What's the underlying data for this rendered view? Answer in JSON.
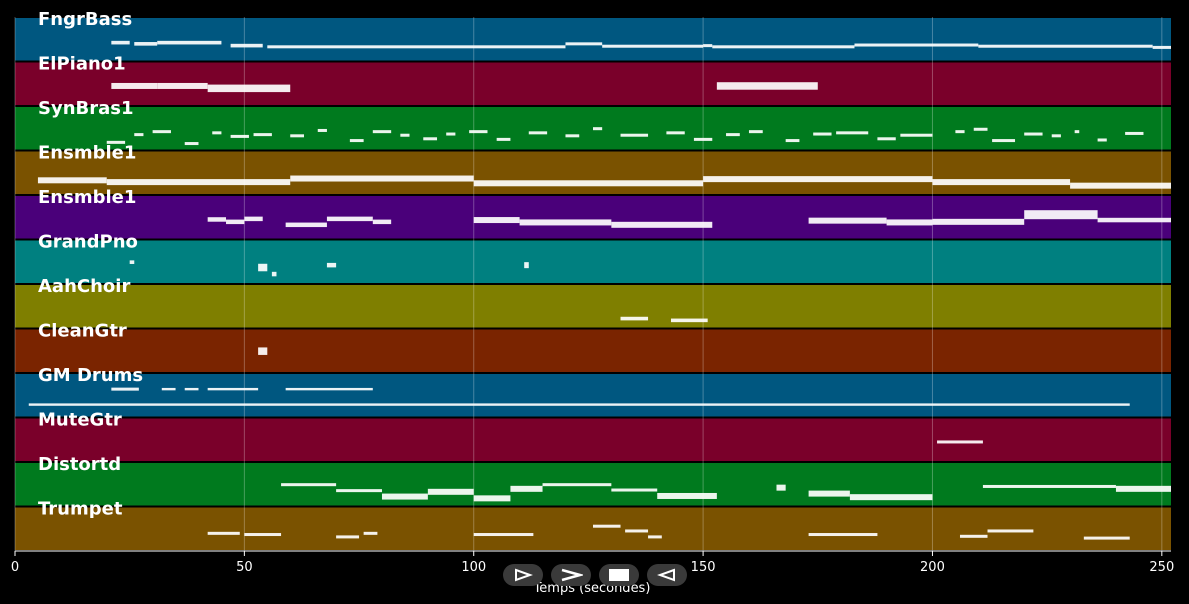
{
  "chart_data": {
    "type": "piano-roll",
    "xlabel": "Temps (secondes)",
    "xlim": [
      0,
      252
    ],
    "xticks": [
      0,
      50,
      100,
      150,
      200,
      250
    ],
    "grid": true,
    "tracks": [
      {
        "name": "FngrBass",
        "color": "#005780",
        "notes": [
          [
            21,
            25,
            1,
            1.2
          ],
          [
            26,
            31,
            0.8,
            1.2
          ],
          [
            31,
            45,
            1,
            1.2
          ],
          [
            47,
            54,
            0.5,
            1.2
          ],
          [
            55,
            120,
            0.3,
            1
          ],
          [
            120,
            128,
            0.8,
            1
          ],
          [
            128,
            150,
            0.4,
            1
          ],
          [
            150,
            152,
            0.5,
            1
          ],
          [
            152,
            183,
            0.3,
            1
          ],
          [
            183,
            210,
            0.6,
            1
          ],
          [
            210,
            248,
            0.4,
            1
          ],
          [
            248,
            252,
            0.2,
            1
          ]
        ]
      },
      {
        "name": "ElPiano1",
        "color": "#7a002a",
        "notes": [
          [
            21,
            31,
            1.2,
            2
          ],
          [
            31,
            42,
            1.2,
            2
          ],
          [
            42,
            60,
            0.8,
            2.5
          ],
          [
            153,
            175,
            1.2,
            2.5
          ]
        ]
      },
      {
        "name": "SynBras1",
        "color": "#007a1e",
        "notes": [
          [
            20,
            24,
            -0.8,
            1
          ],
          [
            26,
            28,
            0.5,
            1
          ],
          [
            30,
            34,
            1,
            1
          ],
          [
            37,
            40,
            -1,
            1
          ],
          [
            43,
            45,
            0.8,
            1
          ],
          [
            47,
            51,
            0.2,
            1
          ],
          [
            52,
            56,
            0.5,
            1
          ],
          [
            60,
            63,
            0.3,
            1
          ],
          [
            66,
            68,
            1.2,
            1
          ],
          [
            73,
            76,
            -0.5,
            1
          ],
          [
            78,
            82,
            1,
            1
          ],
          [
            84,
            86,
            0.4,
            1
          ],
          [
            89,
            92,
            -0.2,
            1
          ],
          [
            94,
            96,
            0.6,
            1
          ],
          [
            99,
            103,
            1,
            1
          ],
          [
            105,
            108,
            -0.3,
            1
          ],
          [
            112,
            116,
            0.8,
            1
          ],
          [
            120,
            123,
            0.3,
            1
          ],
          [
            126,
            128,
            1.5,
            1
          ],
          [
            132,
            138,
            0.4,
            1
          ],
          [
            142,
            146,
            0.8,
            1
          ],
          [
            148,
            152,
            -0.3,
            1
          ],
          [
            155,
            158,
            0.5,
            1
          ],
          [
            160,
            163,
            1,
            1
          ],
          [
            168,
            171,
            -0.5,
            1
          ],
          [
            174,
            178,
            0.6,
            1
          ],
          [
            179,
            186,
            0.8,
            1
          ],
          [
            188,
            192,
            -0.2,
            1
          ],
          [
            193,
            200,
            0.4,
            1
          ],
          [
            205,
            207,
            1,
            1
          ],
          [
            209,
            212,
            1.4,
            1
          ],
          [
            213,
            218,
            -0.5,
            1
          ],
          [
            220,
            224,
            0.6,
            1
          ],
          [
            226,
            228,
            0.3,
            1
          ],
          [
            231,
            232,
            1,
            1
          ],
          [
            236,
            238,
            -0.4,
            1
          ],
          [
            242,
            246,
            0.7,
            1
          ]
        ]
      },
      {
        "name": "Ensmble1",
        "color": "#7a5200",
        "notes": [
          [
            5,
            20,
            0.3,
            2
          ],
          [
            20,
            60,
            0,
            2
          ],
          [
            60,
            100,
            0.6,
            2
          ],
          [
            100,
            150,
            -0.2,
            2
          ],
          [
            150,
            200,
            0.5,
            2
          ],
          [
            200,
            230,
            0,
            2
          ],
          [
            230,
            252,
            -0.6,
            2
          ]
        ]
      },
      {
        "name": "Ensmble1",
        "color": "#4a007a",
        "notes": [
          [
            42,
            46,
            1.2,
            1.5
          ],
          [
            46,
            50,
            0.8,
            1.5
          ],
          [
            50,
            54,
            1.3,
            1.5
          ],
          [
            59,
            68,
            0.3,
            1.5
          ],
          [
            68,
            78,
            1.3,
            1.5
          ],
          [
            78,
            82,
            0.8,
            1.5
          ],
          [
            100,
            110,
            1.1,
            2
          ],
          [
            110,
            130,
            0.7,
            2
          ],
          [
            130,
            152,
            0.3,
            2
          ],
          [
            173,
            190,
            1,
            2
          ],
          [
            190,
            200,
            0.7,
            2
          ],
          [
            200,
            220,
            0.8,
            2
          ],
          [
            220,
            236,
            2,
            3
          ],
          [
            236,
            252,
            1.1,
            1.5
          ]
        ]
      },
      {
        "name": "GrandPno",
        "color": "#008080",
        "notes": [
          [
            25,
            26,
            1.5,
            1.2
          ],
          [
            53,
            55,
            0.6,
            2.5
          ],
          [
            56,
            57,
            -0.5,
            1.5
          ],
          [
            68,
            70,
            1,
            1.5
          ],
          [
            111,
            112,
            1,
            2
          ]
        ]
      },
      {
        "name": "AahChoir",
        "color": "#7f7f00",
        "notes": [
          [
            132,
            138,
            -0.5,
            1.2
          ],
          [
            143,
            151,
            -0.8,
            1.2
          ]
        ]
      },
      {
        "name": "CleanGtr",
        "color": "#7a2400",
        "notes": [
          [
            53,
            55,
            1.5,
            2.5
          ]
        ]
      },
      {
        "name": "GM Drums",
        "color": "#005780",
        "notes": [
          [
            3,
            243,
            0,
            0.8
          ],
          [
            21,
            27,
            2.6,
            1
          ],
          [
            32,
            35,
            2.6,
            0.8
          ],
          [
            37,
            40,
            2.6,
            0.8
          ],
          [
            42,
            53,
            2.6,
            0.8
          ],
          [
            59,
            78,
            2.6,
            0.8
          ]
        ]
      },
      {
        "name": "MuteGtr",
        "color": "#7a002a",
        "notes": [
          [
            201,
            211,
            1.2,
            1
          ]
        ]
      },
      {
        "name": "Distortd",
        "color": "#007a1e",
        "notes": [
          [
            58,
            70,
            1.5,
            1
          ],
          [
            70,
            80,
            0.5,
            1
          ],
          [
            80,
            90,
            -0.5,
            2
          ],
          [
            90,
            100,
            0.3,
            2
          ],
          [
            100,
            108,
            -0.8,
            2
          ],
          [
            108,
            115,
            0.8,
            2
          ],
          [
            115,
            130,
            1.5,
            1
          ],
          [
            130,
            140,
            0.6,
            1
          ],
          [
            140,
            153,
            -0.4,
            2
          ],
          [
            166,
            168,
            1,
            2
          ],
          [
            173,
            182,
            0,
            2
          ],
          [
            182,
            200,
            -0.6,
            2
          ],
          [
            211,
            240,
            1.2,
            1
          ],
          [
            240,
            252,
            0.8,
            2
          ]
        ]
      },
      {
        "name": "Trumpet",
        "color": "#7a5200",
        "notes": [
          [
            42,
            49,
            0.8,
            1
          ],
          [
            50,
            58,
            0.6,
            1
          ],
          [
            70,
            75,
            0.2,
            1
          ],
          [
            76,
            79,
            0.8,
            1
          ],
          [
            100,
            113,
            0.6,
            1
          ],
          [
            126,
            132,
            2,
            1
          ],
          [
            133,
            138,
            1.2,
            1
          ],
          [
            138,
            141,
            0.2,
            1
          ],
          [
            173,
            188,
            0.6,
            1
          ],
          [
            206,
            212,
            0.3,
            1
          ],
          [
            212,
            222,
            1.2,
            1
          ],
          [
            233,
            243,
            0,
            1
          ]
        ]
      }
    ]
  },
  "controls": [
    {
      "name": "play-from-start-button",
      "icon": "play-outline-icon"
    },
    {
      "name": "play-button",
      "icon": "chevron-right-icon"
    },
    {
      "name": "stop-button",
      "icon": "stop-square-icon"
    },
    {
      "name": "rewind-button",
      "icon": "play-reverse-icon"
    }
  ]
}
